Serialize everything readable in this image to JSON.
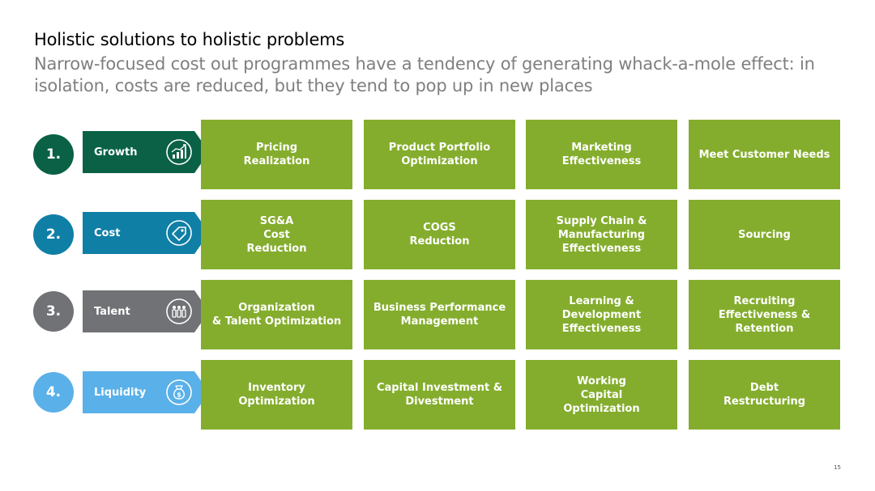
{
  "title": "Holistic solutions to holistic problems",
  "subtitle": "Narrow-focused cost out programmes have a tendency of generating whack-a-mole effect: in isolation, costs are reduced, but they tend to pop up in new places",
  "page_number": "15",
  "colors": {
    "box": "#84ad2d",
    "growth": "#0a6145",
    "cost": "#0f7fa6",
    "talent": "#707275",
    "liquidity": "#5ab0e8"
  },
  "rows": [
    {
      "number": "1.",
      "label": "Growth",
      "icon": "growth-chart-icon",
      "boxes": [
        "Pricing\nRealization",
        "Product Portfolio\nOptimization",
        "Marketing\nEffectiveness",
        "Meet Customer Needs"
      ]
    },
    {
      "number": "2.",
      "label": "Cost",
      "icon": "price-tag-icon",
      "boxes": [
        "SG&A\nCost\nReduction",
        "COGS\nReduction",
        "Supply Chain &\nManufacturing\nEffectiveness",
        "Sourcing"
      ]
    },
    {
      "number": "3.",
      "label": "Talent",
      "icon": "people-group-icon",
      "boxes": [
        "Organization\n& Talent Optimization",
        "Business Performance\nManagement",
        "Learning &\nDevelopment\nEffectiveness",
        "Recruiting\nEffectiveness &\nRetention"
      ]
    },
    {
      "number": "4.",
      "label": "Liquidity",
      "icon": "money-bag-icon",
      "boxes": [
        "Inventory\nOptimization",
        "Capital Investment &\nDivestment",
        "Working\nCapital\nOptimization",
        "Debt\nRestructuring"
      ]
    }
  ]
}
